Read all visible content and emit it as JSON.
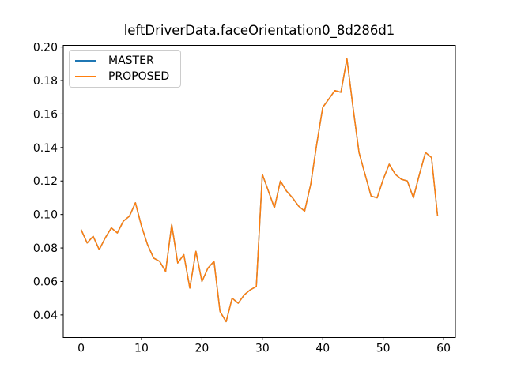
{
  "figure": {
    "background": "#ffffff",
    "text_color": "#000000"
  },
  "legend": {
    "position": "upper left",
    "items": [
      {
        "label": "MASTER",
        "color": "#1f77b4"
      },
      {
        "label": "PROPOSED",
        "color": "#ff7f0e"
      }
    ]
  },
  "chart_data": {
    "type": "line",
    "title": "leftDriverData.faceOrientation0_8d286d1",
    "xlabel": "",
    "ylabel": "",
    "grid": false,
    "legend_position": "upper left",
    "xlim": [
      -2.95,
      61.95
    ],
    "ylim": [
      0.0265,
      0.201
    ],
    "xticks": {
      "values": [
        0,
        10,
        20,
        30,
        40,
        50,
        60
      ],
      "labels": [
        "0",
        "10",
        "20",
        "30",
        "40",
        "50",
        "60"
      ]
    },
    "yticks": {
      "values": [
        0.04,
        0.06,
        0.08,
        0.1,
        0.12,
        0.14,
        0.16,
        0.18,
        0.2
      ],
      "labels": [
        "0.04",
        "0.06",
        "0.08",
        "0.10",
        "0.12",
        "0.14",
        "0.16",
        "0.18",
        "0.20"
      ]
    },
    "x": [
      0,
      1,
      2,
      3,
      4,
      5,
      6,
      7,
      8,
      9,
      10,
      11,
      12,
      13,
      14,
      15,
      16,
      17,
      18,
      19,
      20,
      21,
      22,
      23,
      24,
      25,
      26,
      27,
      28,
      29,
      30,
      31,
      32,
      33,
      34,
      35,
      36,
      37,
      38,
      39,
      40,
      41,
      42,
      43,
      44,
      45,
      46,
      47,
      48,
      49,
      50,
      51,
      52,
      53,
      54,
      55,
      56,
      57,
      58,
      59
    ],
    "series": [
      {
        "name": "MASTER",
        "color": "#1f77b4",
        "values": [
          0.091,
          0.083,
          0.087,
          0.079,
          0.086,
          0.092,
          0.089,
          0.096,
          0.099,
          0.107,
          0.093,
          0.082,
          0.074,
          0.072,
          0.066,
          0.094,
          0.071,
          0.076,
          0.056,
          0.078,
          0.06,
          0.068,
          0.072,
          0.042,
          0.036,
          0.05,
          0.047,
          0.052,
          0.055,
          0.057,
          0.124,
          0.114,
          0.104,
          0.12,
          0.114,
          0.11,
          0.105,
          0.102,
          0.118,
          0.142,
          0.164,
          0.169,
          0.174,
          0.173,
          0.193,
          0.164,
          0.137,
          0.124,
          0.111,
          0.11,
          0.121,
          0.13,
          0.124,
          0.121,
          0.12,
          0.11,
          0.124,
          0.137,
          0.134,
          0.099
        ]
      },
      {
        "name": "PROPOSED",
        "color": "#ff7f0e",
        "values": [
          0.091,
          0.083,
          0.087,
          0.079,
          0.086,
          0.092,
          0.089,
          0.096,
          0.099,
          0.107,
          0.093,
          0.082,
          0.074,
          0.072,
          0.066,
          0.094,
          0.071,
          0.076,
          0.056,
          0.078,
          0.06,
          0.068,
          0.072,
          0.042,
          0.036,
          0.05,
          0.047,
          0.052,
          0.055,
          0.057,
          0.124,
          0.114,
          0.104,
          0.12,
          0.114,
          0.11,
          0.105,
          0.102,
          0.118,
          0.142,
          0.164,
          0.169,
          0.174,
          0.173,
          0.193,
          0.164,
          0.137,
          0.124,
          0.111,
          0.11,
          0.121,
          0.13,
          0.124,
          0.121,
          0.12,
          0.11,
          0.124,
          0.137,
          0.134,
          0.099
        ]
      }
    ]
  }
}
